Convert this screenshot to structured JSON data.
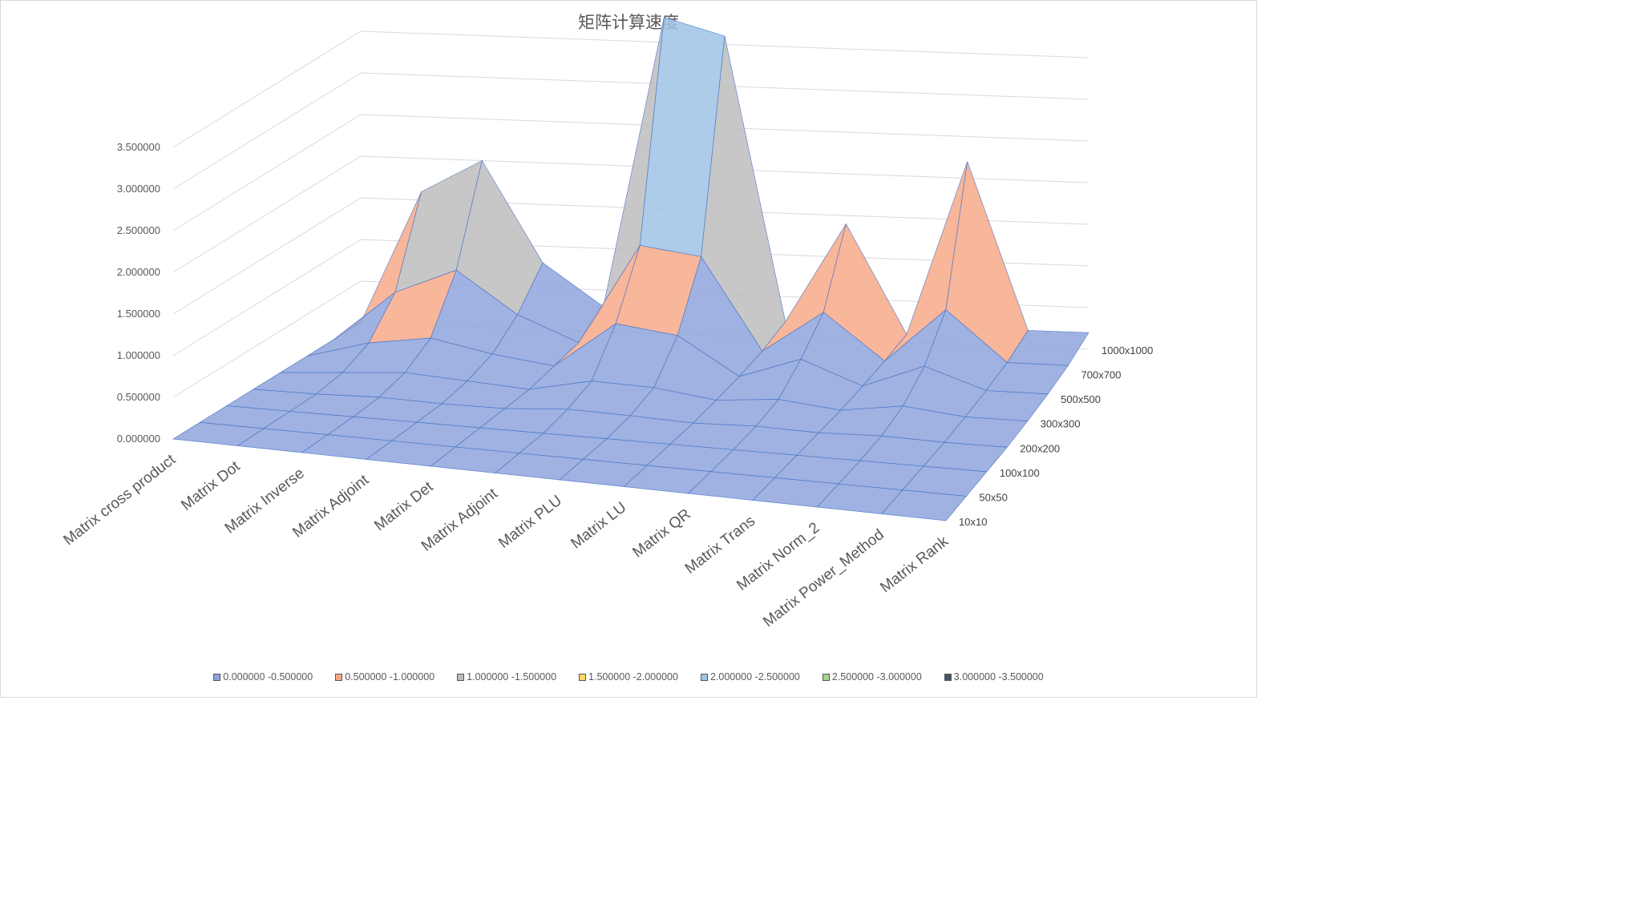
{
  "chart_data": {
    "type": "surface3d",
    "title": "矩阵计算速度",
    "x_categories": [
      "Matrix cross product",
      "Matrix Dot",
      "Matrix Inverse",
      "Matrix Adjoint",
      "Matrix Det",
      "Matrix Adjoint",
      "Matrix PLU",
      "Matrix LU",
      "Matrix QR",
      "Matrix Trans",
      "Matrix Norm_2",
      "Matrix Power_Method",
      "Matrix Rank"
    ],
    "y_categories": [
      "10x10",
      "50x50",
      "100x100",
      "200x200",
      "300x300",
      "500x500",
      "700x700",
      "1000x1000"
    ],
    "z_ticks": [
      "0.000000",
      "0.500000",
      "1.000000",
      "1.500000",
      "2.000000",
      "2.500000",
      "3.000000",
      "3.500000"
    ],
    "z_range": [
      0,
      3.5
    ],
    "values": [
      [
        0,
        0,
        0,
        0,
        0,
        0,
        0,
        0
      ],
      [
        0,
        0,
        0,
        0,
        0.05,
        0.2,
        0.6,
        1.6
      ],
      [
        0,
        0,
        0,
        0.02,
        0.1,
        0.3,
        0.9,
        2.0
      ],
      [
        0,
        0,
        0,
        0,
        0.05,
        0.15,
        0.4,
        0.8
      ],
      [
        0,
        0,
        0,
        0,
        0,
        0.05,
        0.1,
        0.3
      ],
      [
        0,
        0,
        0,
        0.05,
        0.15,
        0.6,
        1.3,
        3.8
      ],
      [
        0,
        0,
        0,
        0.03,
        0.12,
        0.5,
        1.2,
        3.6
      ],
      [
        0,
        0,
        0,
        0,
        0.02,
        0.05,
        0.1,
        0.2
      ],
      [
        0,
        0,
        0,
        0.02,
        0.08,
        0.3,
        0.6,
        1.4
      ],
      [
        0,
        0,
        0,
        0,
        0,
        0.02,
        0.05,
        0.1
      ],
      [
        0,
        0,
        0,
        0.02,
        0.1,
        0.3,
        0.7,
        2.2
      ],
      [
        0,
        0,
        0,
        0,
        0.02,
        0.05,
        0.1,
        0.2
      ],
      [
        0,
        0,
        0,
        0,
        0.02,
        0.05,
        0.1,
        0.2
      ]
    ],
    "bands": [
      {
        "label": "0.000000 -0.500000",
        "color": "#8ea5dc"
      },
      {
        "label": "0.500000 -1.000000",
        "color": "#f7a98a"
      },
      {
        "label": "1.000000 -1.500000",
        "color": "#bdbdbd"
      },
      {
        "label": "1.500000 -2.000000",
        "color": "#ffd966"
      },
      {
        "label": "2.000000 -2.500000",
        "color": "#9dc3e6"
      },
      {
        "label": "2.500000 -3.000000",
        "color": "#a9d18e"
      },
      {
        "label": "3.000000 -3.500000",
        "color": "#44546a"
      }
    ],
    "legend_position": "bottom",
    "gridlines": true
  }
}
